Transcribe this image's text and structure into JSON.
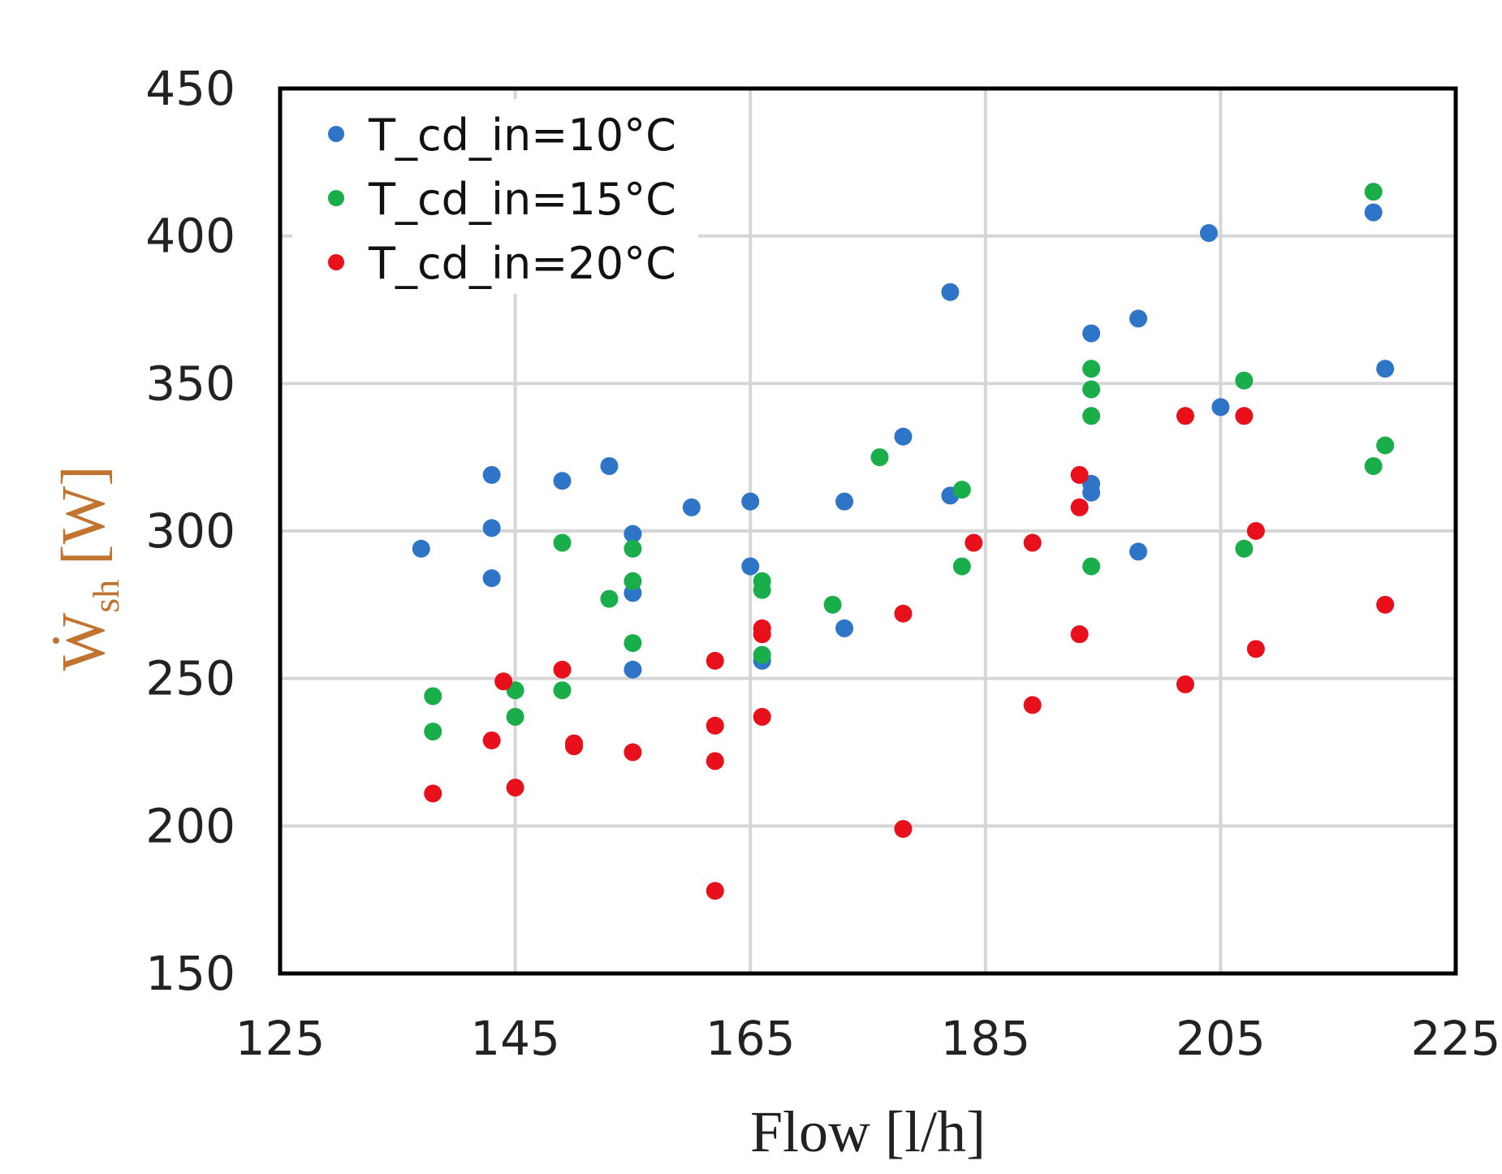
{
  "chart_data": {
    "type": "scatter",
    "xlabel": "Flow [l/h]",
    "ylabel_main": "Ẇ",
    "ylabel_sub": "sh",
    "ylabel_unit": "[W]",
    "xlim": [
      125,
      225
    ],
    "ylim": [
      150,
      450
    ],
    "x_ticks": [
      125,
      145,
      165,
      185,
      205,
      225
    ],
    "y_ticks": [
      150,
      200,
      250,
      300,
      350,
      400,
      450
    ],
    "grid": true,
    "legend_position": "top-left",
    "series": [
      {
        "name": "T_cd_in=10°C",
        "color": "#2e75c8",
        "points": [
          [
            137,
            294
          ],
          [
            143,
            319
          ],
          [
            143,
            301
          ],
          [
            143,
            284
          ],
          [
            149,
            317
          ],
          [
            153,
            322
          ],
          [
            155,
            299
          ],
          [
            155,
            279
          ],
          [
            155,
            253
          ],
          [
            160,
            308
          ],
          [
            165,
            310
          ],
          [
            165,
            288
          ],
          [
            166,
            256
          ],
          [
            173,
            310
          ],
          [
            173,
            267
          ],
          [
            178,
            332
          ],
          [
            182,
            381
          ],
          [
            182,
            312
          ],
          [
            194,
            367
          ],
          [
            194,
            316
          ],
          [
            194,
            313
          ],
          [
            198,
            372
          ],
          [
            198,
            293
          ],
          [
            204,
            401
          ],
          [
            205,
            342
          ],
          [
            218,
            408
          ],
          [
            219,
            355
          ]
        ]
      },
      {
        "name": "T_cd_in=15°C",
        "color": "#1aae4a",
        "points": [
          [
            138,
            244
          ],
          [
            138,
            232
          ],
          [
            145,
            246
          ],
          [
            145,
            237
          ],
          [
            149,
            296
          ],
          [
            149,
            246
          ],
          [
            153,
            277
          ],
          [
            155,
            294
          ],
          [
            155,
            283
          ],
          [
            155,
            262
          ],
          [
            166,
            283
          ],
          [
            166,
            280
          ],
          [
            166,
            258
          ],
          [
            172,
            275
          ],
          [
            176,
            325
          ],
          [
            183,
            314
          ],
          [
            183,
            288
          ],
          [
            194,
            355
          ],
          [
            194,
            348
          ],
          [
            194,
            339
          ],
          [
            194,
            288
          ],
          [
            207,
            351
          ],
          [
            207,
            294
          ],
          [
            218,
            415
          ],
          [
            218,
            322
          ],
          [
            219,
            329
          ]
        ]
      },
      {
        "name": "T_cd_in=20°C",
        "color": "#e8101a",
        "points": [
          [
            138,
            211
          ],
          [
            143,
            229
          ],
          [
            144,
            249
          ],
          [
            145,
            213
          ],
          [
            149,
            253
          ],
          [
            150,
            227
          ],
          [
            150,
            228
          ],
          [
            155,
            225
          ],
          [
            162,
            256
          ],
          [
            162,
            234
          ],
          [
            162,
            222
          ],
          [
            162,
            178
          ],
          [
            166,
            265
          ],
          [
            166,
            267
          ],
          [
            166,
            237
          ],
          [
            178,
            272
          ],
          [
            178,
            199
          ],
          [
            184,
            296
          ],
          [
            189,
            296
          ],
          [
            189,
            241
          ],
          [
            193,
            319
          ],
          [
            193,
            308
          ],
          [
            193,
            265
          ],
          [
            202,
            339
          ],
          [
            202,
            248
          ],
          [
            207,
            339
          ],
          [
            208,
            300
          ],
          [
            208,
            260
          ],
          [
            219,
            275
          ]
        ]
      }
    ]
  }
}
